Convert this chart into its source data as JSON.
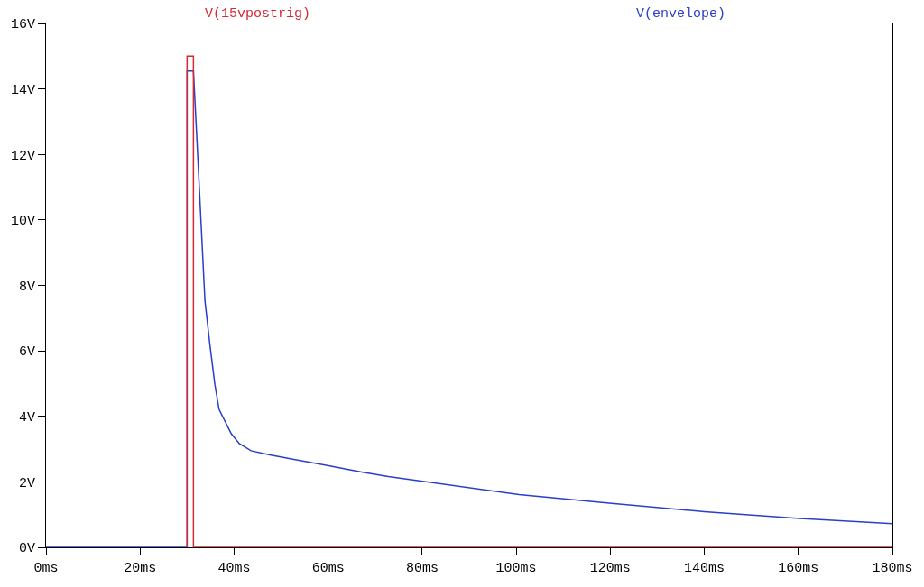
{
  "chart_data": {
    "type": "line",
    "series": [
      {
        "name": "V(15vpostrig)",
        "color": "#d42a35",
        "x": [
          30,
          30,
          31.35,
          31.35,
          180
        ],
        "values": [
          0,
          15,
          15,
          0,
          0
        ]
      },
      {
        "name": "V(envelope)",
        "color": "#2a3ec8",
        "x": [
          0,
          30,
          30,
          31.35,
          32.4,
          33.8,
          34.9,
          35.9,
          36.8,
          39.4,
          41.1,
          43.6,
          47.6,
          60.1,
          67.1,
          72.8,
          80.1,
          100.6,
          120.3,
          140,
          160.3,
          180
        ],
        "values": [
          0,
          0,
          14.55,
          14.55,
          11.57,
          7.52,
          6.13,
          4.98,
          4.21,
          3.47,
          3.17,
          2.95,
          2.82,
          2.49,
          2.3,
          2.16,
          2.02,
          1.61,
          1.34,
          1.09,
          0.88,
          0.72
        ]
      }
    ],
    "xlim": [
      0,
      180
    ],
    "xticks": [
      {
        "value": 0,
        "label": "0ms"
      },
      {
        "value": 20,
        "label": "20ms"
      },
      {
        "value": 40,
        "label": "40ms"
      },
      {
        "value": 60,
        "label": "60ms"
      },
      {
        "value": 80,
        "label": "80ms"
      },
      {
        "value": 100,
        "label": "100ms"
      },
      {
        "value": 120,
        "label": "120ms"
      },
      {
        "value": 140,
        "label": "140ms"
      },
      {
        "value": 160,
        "label": "160ms"
      },
      {
        "value": 180,
        "label": "180ms"
      }
    ],
    "ylim": [
      0,
      16
    ],
    "yticks": [
      {
        "value": 0,
        "label": "0V"
      },
      {
        "value": 2,
        "label": "2V"
      },
      {
        "value": 4,
        "label": "4V"
      },
      {
        "value": 6,
        "label": "6V"
      },
      {
        "value": 8,
        "label": "8V"
      },
      {
        "value": 10,
        "label": "10V"
      },
      {
        "value": 12,
        "label": "12V"
      },
      {
        "value": 14,
        "label": "14V"
      },
      {
        "value": 16,
        "label": "16V"
      }
    ],
    "legend": "top",
    "marker": "none",
    "line_style": "solid"
  }
}
